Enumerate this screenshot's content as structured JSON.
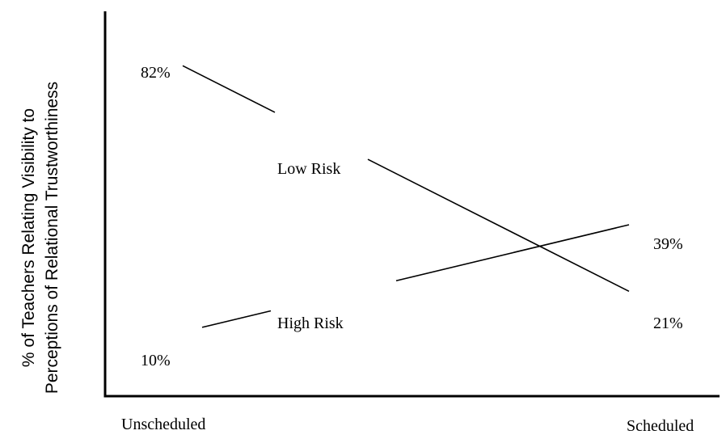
{
  "chart_data": {
    "type": "line",
    "title": "",
    "ylabel_lines": [
      "% of Teachers Relating Visibility to",
      "Perceptions of Relational Trustworthiness"
    ],
    "xlabel": "",
    "categories": [
      "Unscheduled",
      "Scheduled"
    ],
    "ylim": [
      0,
      100
    ],
    "grid": false,
    "series": [
      {
        "name": "Low Risk",
        "values": [
          82,
          21
        ],
        "value_labels": [
          "82%",
          "21%"
        ]
      },
      {
        "name": "High Risk",
        "values": [
          10,
          39
        ],
        "value_labels": [
          "10%",
          "39%"
        ]
      }
    ]
  }
}
